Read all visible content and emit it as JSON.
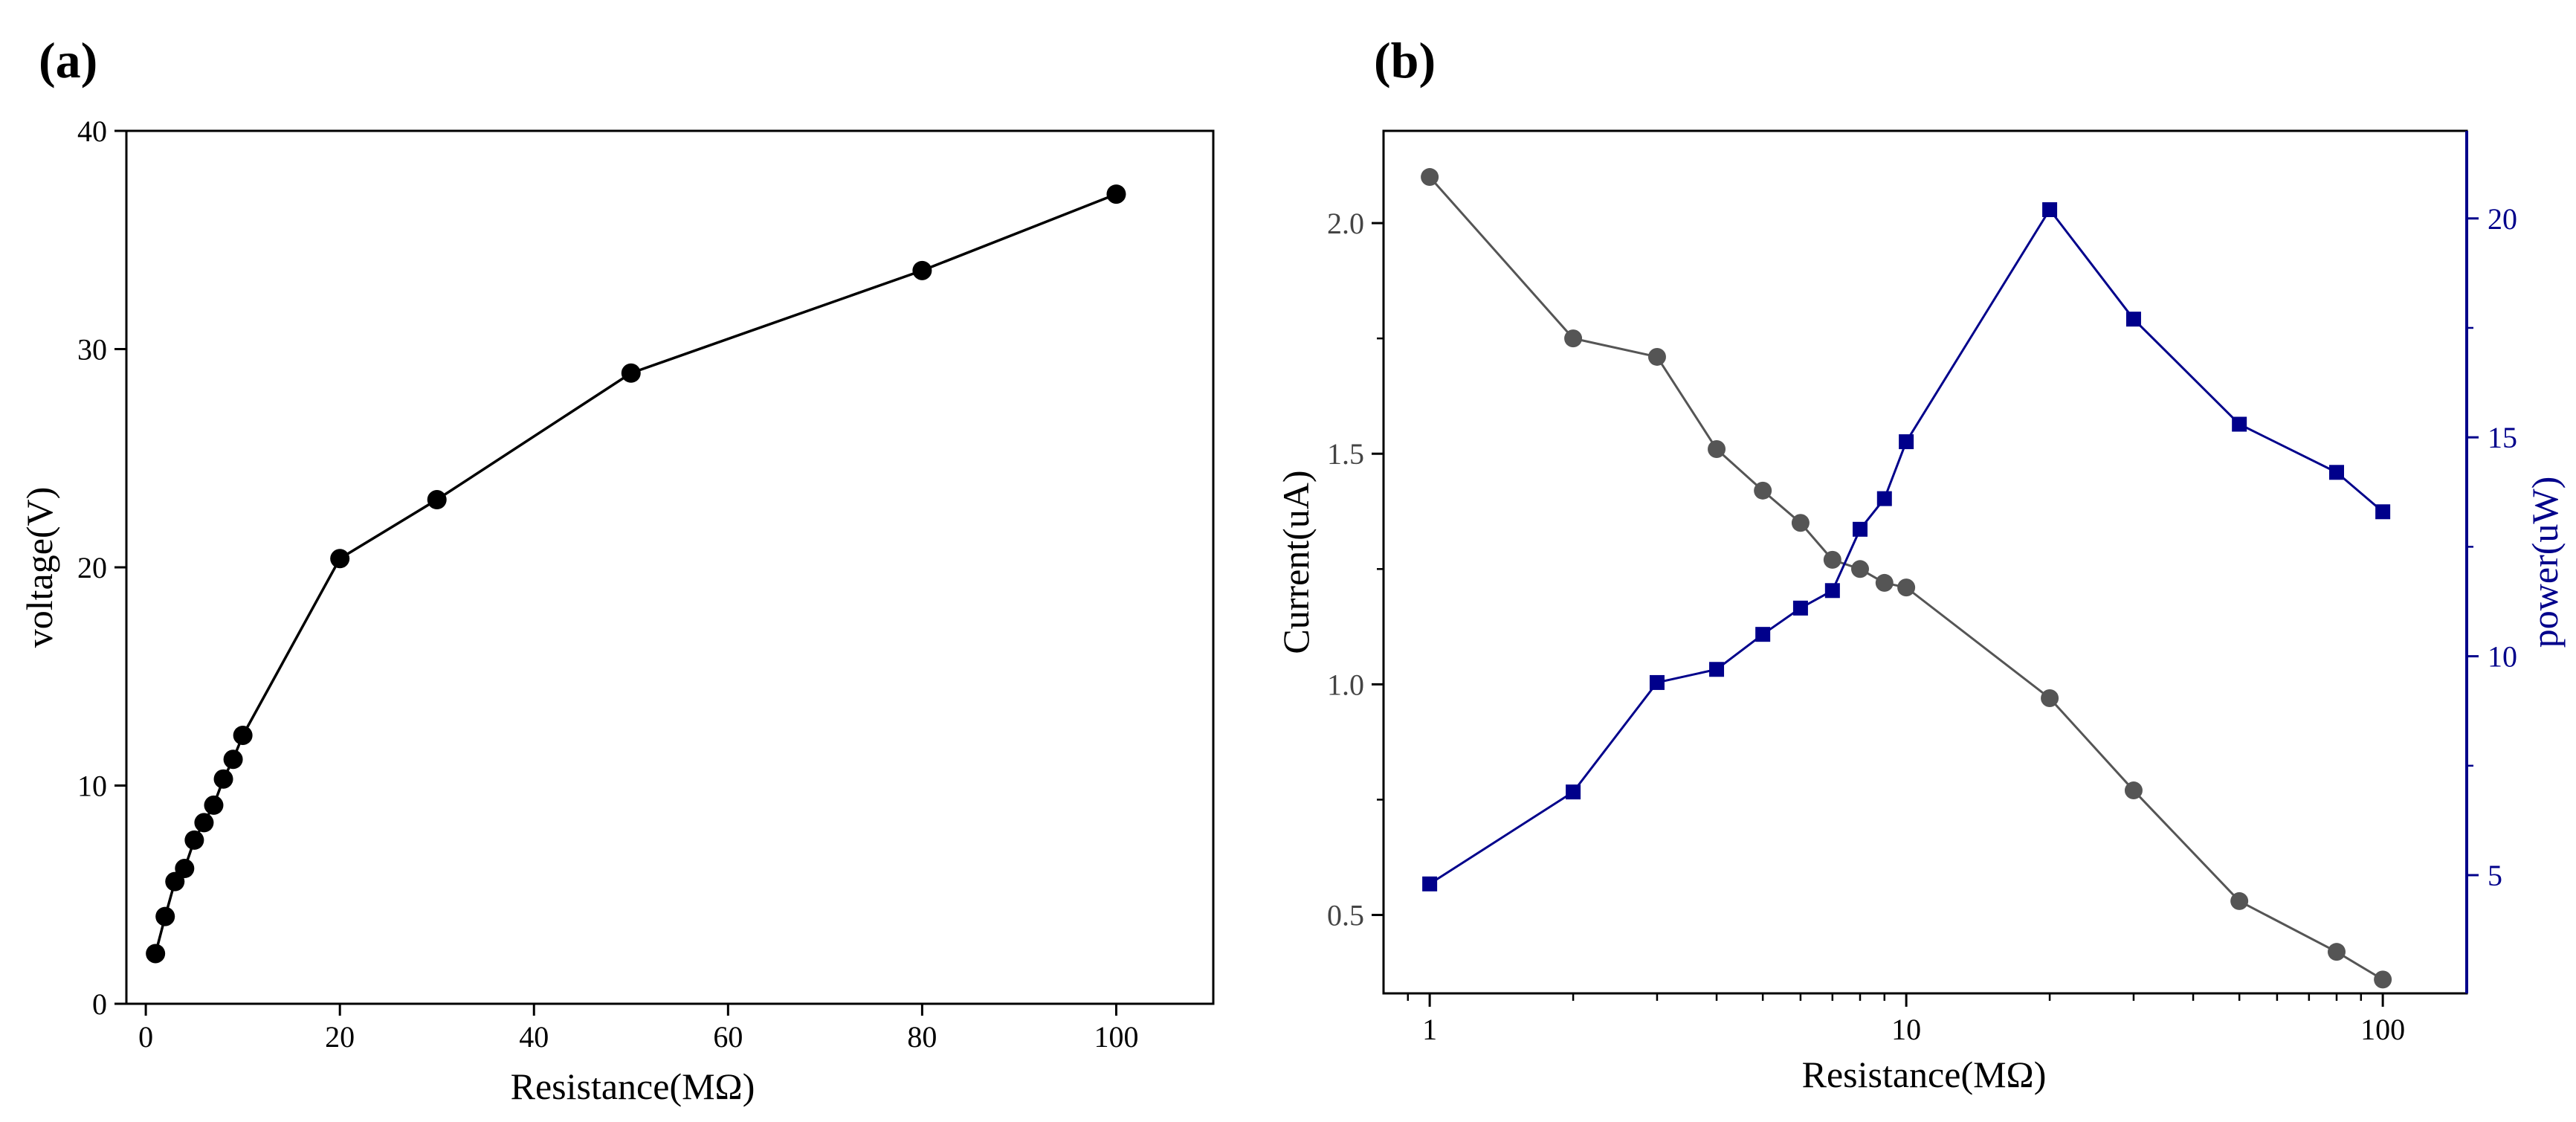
{
  "chart_data": [
    {
      "panel_label": "(a)",
      "type": "line",
      "xlabel": "Resistance(MΩ)",
      "ylabel": "voltage(V)",
      "xlim": [
        -2,
        110
      ],
      "ylim": [
        0,
        40
      ],
      "xticks": [
        0,
        20,
        40,
        60,
        80,
        100
      ],
      "yticks": [
        0,
        10,
        20,
        30,
        40
      ],
      "series": [
        {
          "name": "voltage",
          "color": "#000000",
          "marker": "circle",
          "x": [
            1,
            2,
            3,
            4,
            5,
            6,
            7,
            8,
            9,
            10,
            20,
            30,
            50,
            80,
            100
          ],
          "y": [
            2.3,
            4.0,
            5.6,
            6.2,
            7.5,
            8.3,
            9.1,
            10.3,
            11.2,
            12.3,
            20.4,
            23.1,
            28.9,
            33.6,
            37.1
          ]
        }
      ]
    },
    {
      "panel_label": "(b)",
      "type": "line",
      "xscale": "log",
      "xlabel": "Resistance(MΩ)",
      "ylabel": "Current(uA)",
      "ylabel_right": "power(uW)",
      "xlim": [
        0.8,
        150
      ],
      "ylim": [
        0.33,
        2.2
      ],
      "ylim_right": [
        2.3,
        22
      ],
      "xticks": [
        1,
        10,
        100
      ],
      "yticks": [
        0.5,
        1.0,
        1.5,
        2.0
      ],
      "ytick_labels": [
        "0.5",
        "1.0",
        "1.5",
        "2.0"
      ],
      "yticks_right": [
        5,
        10,
        15,
        20
      ],
      "series": [
        {
          "name": "Current",
          "axis": "left",
          "color": "#555555",
          "marker": "circle",
          "x": [
            1,
            2,
            3,
            4,
            5,
            6,
            7,
            8,
            9,
            10,
            20,
            30,
            50,
            80,
            100
          ],
          "y": [
            2.1,
            1.75,
            1.71,
            1.51,
            1.42,
            1.35,
            1.27,
            1.25,
            1.22,
            1.21,
            0.97,
            0.77,
            0.53,
            0.42,
            0.36
          ]
        },
        {
          "name": "power",
          "axis": "right",
          "color": "#00008b",
          "marker": "square",
          "x": [
            1,
            2,
            3,
            4,
            5,
            6,
            7,
            8,
            9,
            10,
            20,
            30,
            50,
            80,
            100
          ],
          "y": [
            4.8,
            6.9,
            9.4,
            9.7,
            10.5,
            11.1,
            11.5,
            12.9,
            13.6,
            14.9,
            20.2,
            17.7,
            15.3,
            14.2,
            13.3
          ]
        }
      ]
    }
  ]
}
